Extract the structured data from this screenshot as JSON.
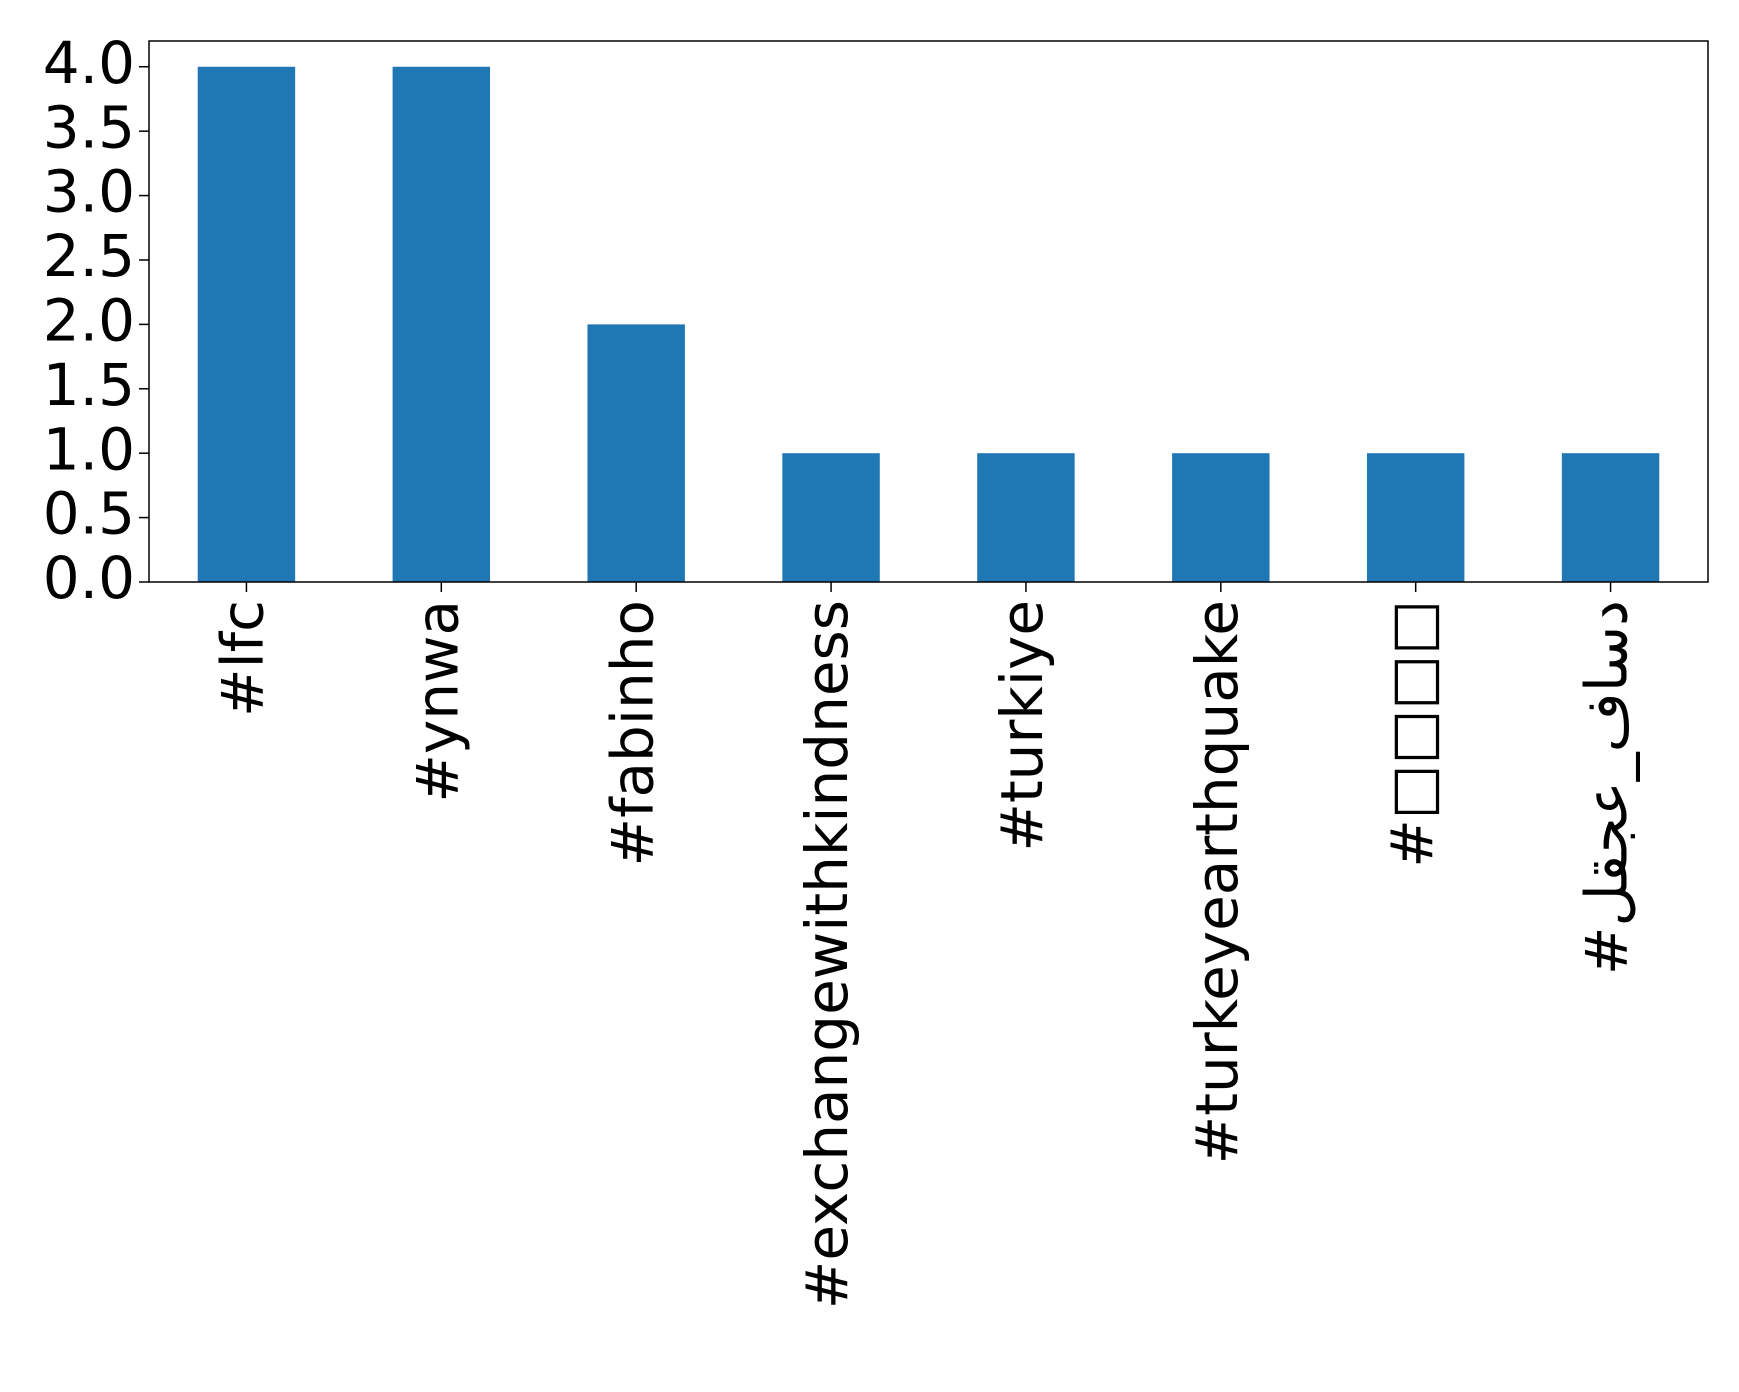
{
  "chart_data": {
    "type": "bar",
    "categories": [
      "#lfc",
      "#ynwa",
      "#fabinho",
      "#exchangewithkindness",
      "#turkiye",
      "#turkeyearthquake",
      "#□□□□",
      "#لقجع_فاسد"
    ],
    "values": [
      4,
      4,
      2,
      1,
      1,
      1,
      1,
      1
    ],
    "color": "#1f77b4",
    "ylim": [
      0,
      4.2
    ],
    "yticks": [
      {
        "value": 0,
        "label": "0.0"
      },
      {
        "value": 0.5,
        "label": "0.5"
      },
      {
        "value": 1,
        "label": "1.0"
      },
      {
        "value": 1.5,
        "label": "1.5"
      },
      {
        "value": 2,
        "label": "2.0"
      },
      {
        "value": 2.5,
        "label": "2.5"
      },
      {
        "value": 3,
        "label": "3.0"
      },
      {
        "value": 3.5,
        "label": "3.5"
      },
      {
        "value": 4,
        "label": "4.0"
      }
    ],
    "grid": false
  }
}
